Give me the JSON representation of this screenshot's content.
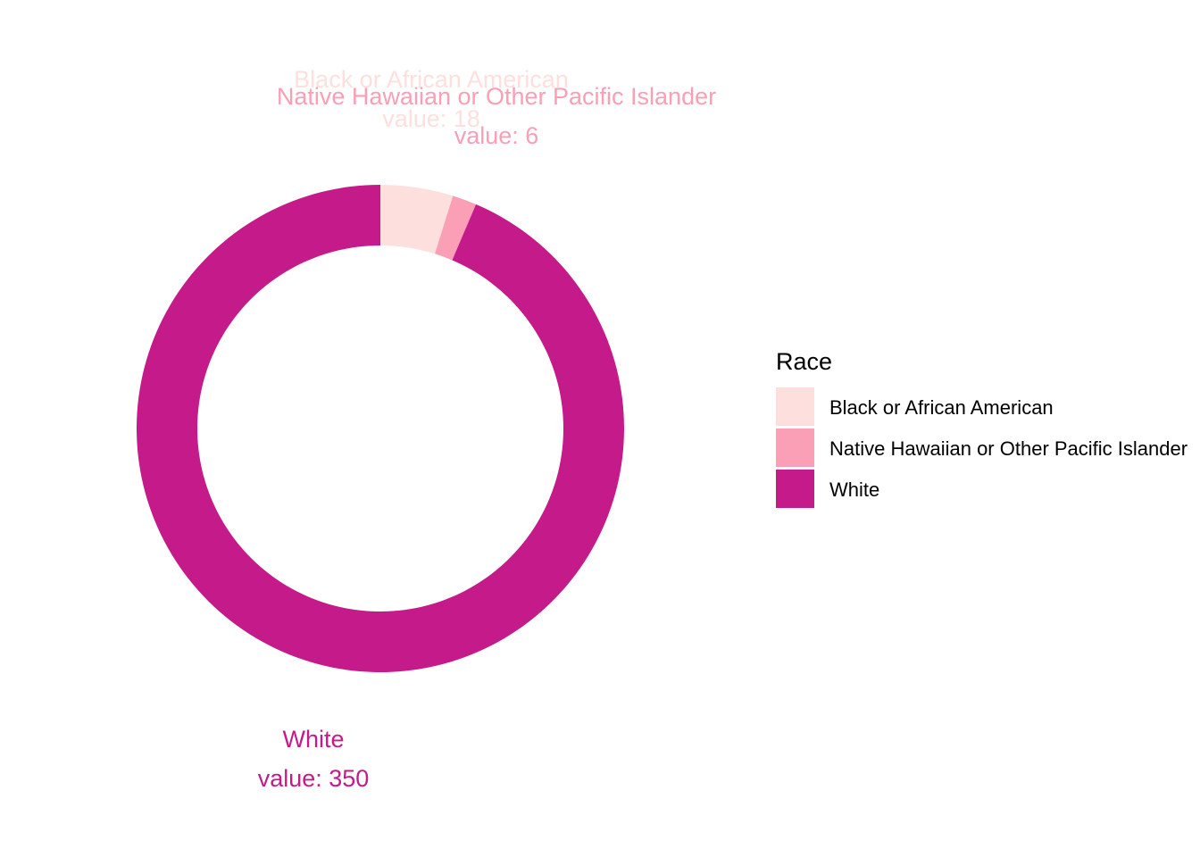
{
  "chart_data": {
    "type": "pie",
    "donut": true,
    "legend": {
      "title": "Race",
      "position": "right"
    },
    "slices": [
      {
        "name": "Black or African American",
        "value": 18,
        "value_label": "value: 18",
        "color": "#FDE0DD"
      },
      {
        "name": "Native Hawaiian or Other Pacific Islander",
        "value": 6,
        "value_label": "value: 6",
        "color": "#FA9FB5"
      },
      {
        "name": "White",
        "value": 350,
        "value_label": "value: 350",
        "color": "#C51B8A"
      }
    ]
  }
}
